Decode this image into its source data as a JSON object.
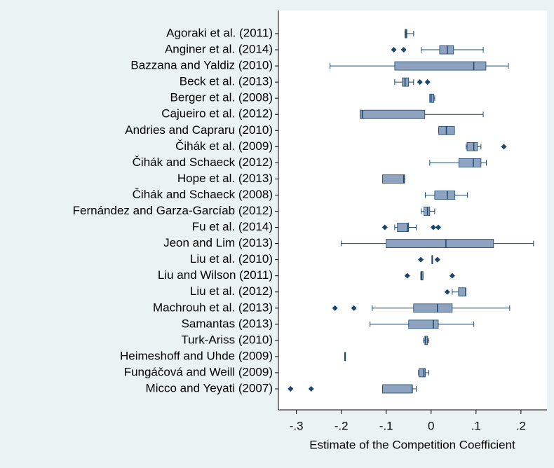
{
  "chart_data": {
    "type": "boxplot",
    "orientation": "horizontal",
    "x_label": "Estimate of the Competition Coefficient",
    "categories": [
      "Agoraki et al. (2011)",
      "Anginer et al. (2014)",
      "Bazzana and Yaldiz (2010)",
      "Beck et al. (2013)",
      "Berger et al. (2008)",
      "Cajueiro et al. (2012)",
      "Andries and Capraru (2010)",
      "Čihák et al. (2009)",
      "Čihák and Schaeck (2012)",
      "Hope et al. (2013)",
      "Čihák and Schaeck (2008)",
      "Fernández and Garza-Garcíab (2012)",
      "Fu et al. (2014)",
      "Jeon and Lim (2013)",
      "Liu et al. (2010)",
      "Liu and Wilson (2011)",
      "Liu et al. (2012)",
      "Machrouh et al. (2013)",
      "Samantas (2013)",
      "Turk-Ariss (2010)",
      "Heimeshoff and Uhde (2009)",
      "Fungáčová and Weill (2009)",
      "Micco and Yeyati (2007)"
    ],
    "min": [
      -0.058,
      -0.022,
      -0.225,
      -0.081,
      -0.003,
      -0.158,
      0.017,
      0.078,
      -0.003,
      -0.108,
      -0.013,
      -0.022,
      -0.081,
      -0.2,
      0.002,
      -0.023,
      0.047,
      -0.131,
      -0.136,
      -0.017,
      -0.192,
      -0.028,
      -0.108
    ],
    "q1": [
      -0.058,
      0.019,
      -0.081,
      -0.064,
      -0.003,
      -0.158,
      0.017,
      0.08,
      0.062,
      -0.108,
      0.008,
      -0.016,
      -0.075,
      -0.1,
      0.002,
      -0.023,
      0.061,
      -0.039,
      -0.05,
      -0.014,
      -0.192,
      -0.027,
      -0.108
    ],
    "median": [
      -0.056,
      0.036,
      0.095,
      -0.058,
      0.0,
      -0.153,
      0.034,
      0.095,
      0.094,
      -0.061,
      0.036,
      -0.008,
      -0.052,
      0.033,
      0.002,
      -0.021,
      0.077,
      0.014,
      0.005,
      -0.013,
      -0.192,
      -0.016,
      -0.042
    ],
    "q3": [
      -0.054,
      0.05,
      0.122,
      -0.05,
      0.006,
      -0.014,
      0.052,
      0.103,
      0.111,
      -0.059,
      0.053,
      -0.003,
      -0.05,
      0.139,
      0.002,
      -0.018,
      0.077,
      0.047,
      0.016,
      -0.008,
      -0.192,
      -0.013,
      -0.042
    ],
    "max": [
      -0.039,
      0.116,
      0.172,
      -0.039,
      0.008,
      0.116,
      0.052,
      0.111,
      0.123,
      -0.059,
      0.081,
      0.008,
      -0.033,
      0.228,
      0.002,
      -0.018,
      0.077,
      0.175,
      0.095,
      -0.005,
      -0.192,
      -0.005,
      -0.033
    ],
    "outliers": [
      [],
      [
        -0.083,
        -0.061
      ],
      [],
      [
        -0.025,
        -0.008
      ],
      [],
      [],
      [],
      [
        0.162
      ],
      [],
      [],
      [],
      [],
      [
        -0.103,
        0.005,
        0.016
      ],
      [],
      [
        -0.023,
        0.014
      ],
      [
        -0.053,
        0.047
      ],
      [
        0.036
      ],
      [
        -0.214,
        -0.172
      ],
      [],
      [],
      [],
      [],
      [
        -0.313,
        -0.267
      ]
    ],
    "box_color": "#8ea3bf",
    "line_color": "#1a476f",
    "xlim": [
      -0.34,
      0.258
    ],
    "xticks": [
      {
        "value": -0.3,
        "label": "-.3"
      },
      {
        "value": -0.2,
        "label": "-.2"
      },
      {
        "value": -0.1,
        "label": "-.1"
      },
      0,
      {
        "value": 0.1,
        "label": ".1"
      },
      {
        "value": 0.2,
        "label": ".2"
      }
    ]
  }
}
